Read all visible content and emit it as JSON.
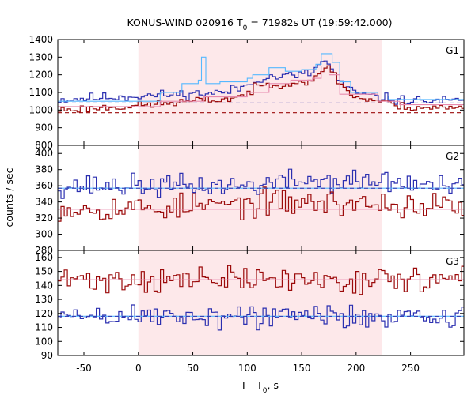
{
  "chart_data": {
    "type": "line",
    "title": {
      "prefix": "KONUS-WIND 020916 T",
      "sub": "0",
      "suffix": " = 71982s UT (19:59:42.000)"
    },
    "xlabel": {
      "prefix": "T - T",
      "sub": "0",
      "suffix": ", s"
    },
    "ylabel": "counts / sec",
    "xlim": [
      -74,
      299
    ],
    "xticks": [
      -50,
      0,
      50,
      100,
      150,
      200,
      250
    ],
    "shaded_interval": [
      0,
      224
    ],
    "colors": {
      "shade": "#fde8ea",
      "blue": "#2b2fb0",
      "red": "#9b0a0a",
      "light_blue": "#55b8ff",
      "pink": "#e88aae"
    },
    "panels": [
      {
        "label": "G1",
        "ylim": [
          800,
          1400
        ],
        "yticks": [
          900,
          1000,
          1100,
          1200,
          1300,
          1400
        ],
        "shown_bottom_tick": "800",
        "background_levels": {
          "blue": 1040,
          "red": 985
        },
        "series": [
          {
            "name": "",
            "color": "blue",
            "keys": [
              [
                -74,
                1060
              ],
              [
                -20,
                1075
              ],
              [
                0,
                1080
              ],
              [
                40,
                1090
              ],
              [
                60,
                1095
              ],
              [
                80,
                1100
              ],
              [
                100,
                1140
              ],
              [
                110,
                1180
              ],
              [
                130,
                1190
              ],
              [
                150,
                1200
              ],
              [
                160,
                1210
              ],
              [
                170,
                1290
              ],
              [
                180,
                1210
              ],
              [
                190,
                1120
              ],
              [
                210,
                1080
              ],
              [
                224,
                1070
              ],
              [
                240,
                1055
              ],
              [
                299,
                1050
              ]
            ],
            "noise": 24,
            "seed": 11
          },
          {
            "name": "",
            "color": "red",
            "keys": [
              [
                -74,
                1000
              ],
              [
                0,
                1025
              ],
              [
                40,
                1045
              ],
              [
                60,
                1055
              ],
              [
                80,
                1060
              ],
              [
                100,
                1090
              ],
              [
                110,
                1135
              ],
              [
                130,
                1150
              ],
              [
                150,
                1160
              ],
              [
                165,
                1180
              ],
              [
                175,
                1260
              ],
              [
                185,
                1150
              ],
              [
                200,
                1070
              ],
              [
                224,
                1050
              ],
              [
                240,
                1020
              ],
              [
                299,
                1010
              ]
            ],
            "noise": 20,
            "seed": 23
          },
          {
            "name": "",
            "color": "light_blue",
            "steps": [
              [
                -74,
                1050
              ],
              [
                20,
                1100
              ],
              [
                40,
                1150
              ],
              [
                55,
                1170
              ],
              [
                58,
                1300
              ],
              [
                62,
                1150
              ],
              [
                75,
                1160
              ],
              [
                100,
                1180
              ],
              [
                105,
                1200
              ],
              [
                120,
                1240
              ],
              [
                135,
                1220
              ],
              [
                150,
                1230
              ],
              [
                163,
                1260
              ],
              [
                168,
                1320
              ],
              [
                178,
                1270
              ],
              [
                185,
                1160
              ],
              [
                195,
                1100
              ],
              [
                220,
                1080
              ],
              [
                230,
                1060
              ],
              [
                299,
                1060
              ]
            ]
          },
          {
            "name": "",
            "color": "pink",
            "steps": [
              [
                -74,
                1020
              ],
              [
                20,
                1050
              ],
              [
                60,
                1075
              ],
              [
                100,
                1100
              ],
              [
                120,
                1150
              ],
              [
                140,
                1170
              ],
              [
                160,
                1180
              ],
              [
                168,
                1250
              ],
              [
                175,
                1200
              ],
              [
                185,
                1090
              ],
              [
                220,
                1050
              ],
              [
                240,
                1030
              ],
              [
                299,
                1030
              ]
            ]
          }
        ]
      },
      {
        "label": "G2",
        "ylim": [
          280,
          410
        ],
        "yticks": [
          300,
          320,
          340,
          360,
          380,
          400
        ],
        "shown_bottom_tick": "280",
        "background_levels": {
          "blue": 357,
          "red": 331
        },
        "series": [
          {
            "name": "",
            "color": "blue",
            "keys": [
              [
                -74,
                360
              ],
              [
                0,
                360
              ],
              [
                100,
                360
              ],
              [
                150,
                367
              ],
              [
                200,
                365
              ],
              [
                224,
                366
              ],
              [
                299,
                356
              ]
            ],
            "noise": 12,
            "seed": 37
          },
          {
            "name": "",
            "color": "red",
            "keys": [
              [
                -74,
                333
              ],
              [
                0,
                332
              ],
              [
                150,
                340
              ],
              [
                224,
                337
              ],
              [
                299,
                333
              ]
            ],
            "noise": 14,
            "seed": 53
          },
          {
            "name": "",
            "color": "light_blue",
            "steps": [
              [
                -74,
                357
              ],
              [
                299,
                357
              ]
            ]
          },
          {
            "name": "",
            "color": "pink",
            "steps": [
              [
                -74,
                331
              ],
              [
                299,
                331
              ]
            ]
          }
        ]
      },
      {
        "label": "G3",
        "ylim": [
          90,
          165
        ],
        "yticks": [
          90,
          100,
          110,
          120,
          130,
          140,
          150,
          160
        ],
        "shown_bottom_tick": "90",
        "background_levels": {
          "blue": 118,
          "red": 144
        },
        "series": [
          {
            "name": "",
            "color": "red",
            "keys": [
              [
                -74,
                144
              ],
              [
                299,
                144
              ]
            ],
            "noise": 8,
            "seed": 71
          },
          {
            "name": "",
            "color": "blue",
            "keys": [
              [
                -74,
                118
              ],
              [
                299,
                118
              ]
            ],
            "noise": 8,
            "seed": 89
          },
          {
            "name": "",
            "color": "light_blue",
            "steps": [
              [
                -74,
                118
              ],
              [
                299,
                118
              ]
            ]
          },
          {
            "name": "",
            "color": "pink",
            "steps": [
              [
                -74,
                144
              ],
              [
                299,
                144
              ]
            ]
          }
        ]
      }
    ]
  }
}
